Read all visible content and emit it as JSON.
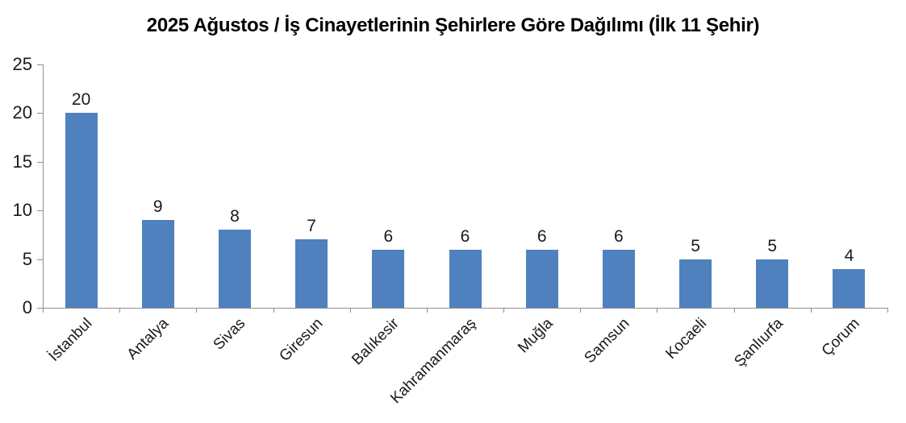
{
  "chart_data": {
    "type": "bar",
    "title": "2025 Ağustos / İş Cinayetlerinin Şehirlere Göre Dağılımı (İlk 11 Şehir)",
    "categories": [
      "İstanbul",
      "Antalya",
      "Sivas",
      "Giresun",
      "Balıkesir",
      "Kahramanmaraş",
      "Muğla",
      "Samsun",
      "Kocaeli",
      "Şanlıurfa",
      "Çorum"
    ],
    "values": [
      20,
      9,
      8,
      7,
      6,
      6,
      6,
      6,
      5,
      5,
      4
    ],
    "data_labels": [
      20,
      9,
      8,
      7,
      6,
      6,
      6,
      6,
      5,
      5,
      4
    ],
    "xlabel": "",
    "ylabel": "",
    "ylim": [
      0,
      25
    ],
    "yticks": [
      0,
      5,
      10,
      15,
      20,
      25
    ],
    "grid": false,
    "legend": false,
    "bar_color": "#4e81bd",
    "axis_color": "#8f8f8f",
    "text_color": "#1a1a1a",
    "title_color": "#000000"
  }
}
